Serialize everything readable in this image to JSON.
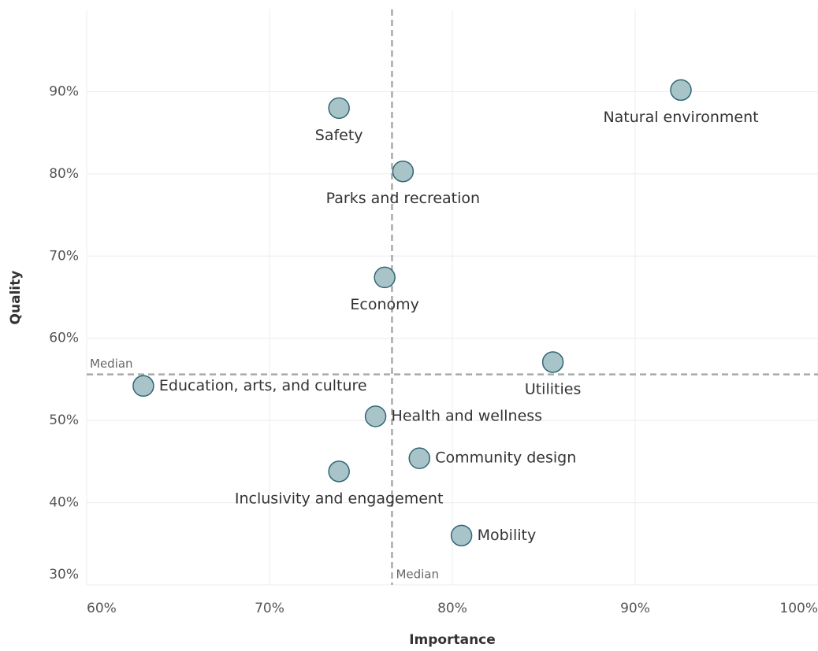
{
  "chart_data": {
    "type": "scatter",
    "x_label": "Importance",
    "y_label": "Quality",
    "xlim": [
      60,
      100
    ],
    "ylim": [
      30,
      100
    ],
    "xticks": [
      {
        "value": 60,
        "label": "60%"
      },
      {
        "value": 70,
        "label": "70%"
      },
      {
        "value": 80,
        "label": "80%"
      },
      {
        "value": 90,
        "label": "90%"
      },
      {
        "value": 100,
        "label": "100%"
      }
    ],
    "yticks": [
      {
        "value": 30,
        "label": "30%"
      },
      {
        "value": 40,
        "label": "40%"
      },
      {
        "value": 50,
        "label": "50%"
      },
      {
        "value": 60,
        "label": "60%"
      },
      {
        "value": 70,
        "label": "70%"
      },
      {
        "value": 80,
        "label": "80%"
      },
      {
        "value": 90,
        "label": "90%"
      }
    ],
    "grid": true,
    "color": "#a9c4c8",
    "edge_color": "#2f6674",
    "points": [
      {
        "name": "Natural environment",
        "x": 92.5,
        "y": 90.2
      },
      {
        "name": "Safety",
        "x": 73.8,
        "y": 88.0
      },
      {
        "name": "Parks and recreation",
        "x": 77.3,
        "y": 80.3
      },
      {
        "name": "Economy",
        "x": 76.3,
        "y": 67.4
      },
      {
        "name": "Utilities",
        "x": 85.5,
        "y": 57.1
      },
      {
        "name": "Education, arts, and culture",
        "x": 63.1,
        "y": 54.2
      },
      {
        "name": "Health and wellness",
        "x": 75.8,
        "y": 50.5
      },
      {
        "name": "Community design",
        "x": 78.2,
        "y": 45.4
      },
      {
        "name": "Inclusivity and engagement",
        "x": 73.8,
        "y": 43.8
      },
      {
        "name": "Mobility",
        "x": 80.5,
        "y": 36.0
      }
    ],
    "median": {
      "label": "Median",
      "x": 76.7,
      "y": 55.6
    }
  }
}
